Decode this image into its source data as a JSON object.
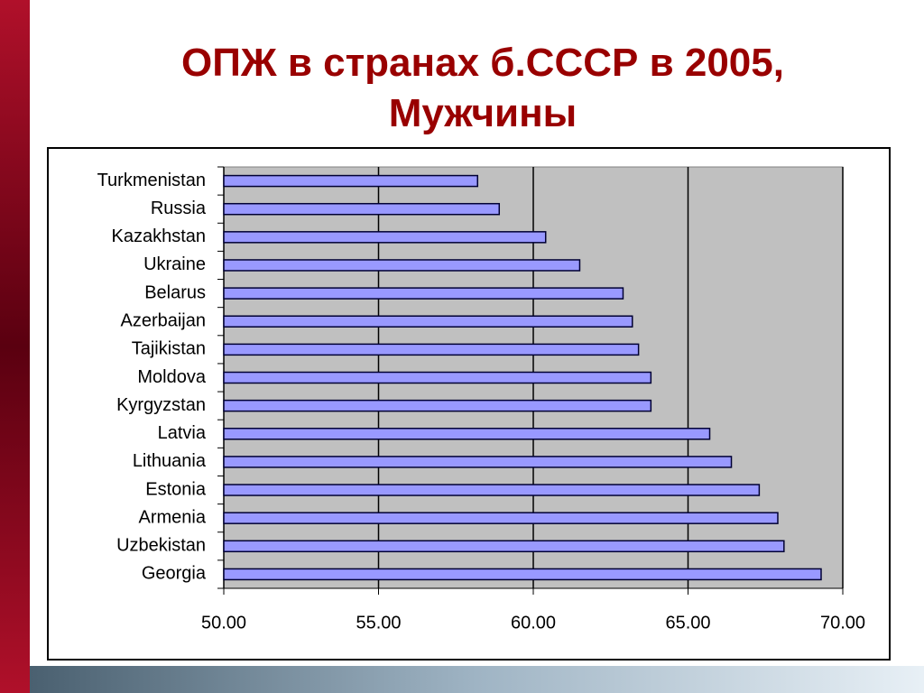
{
  "chart_data": {
    "type": "bar",
    "orientation": "horizontal",
    "title": "ОПЖ в странах б.СССР в 2005, Мужчины",
    "categories": [
      "Turkmenistan",
      "Russia",
      "Kazakhstan",
      "Ukraine",
      "Belarus",
      "Azerbaijan",
      "Tajikistan",
      "Moldova",
      "Kyrgyzstan",
      "Latvia",
      "Lithuania",
      "Estonia",
      "Armenia",
      "Uzbekistan",
      "Georgia"
    ],
    "values": [
      58.2,
      58.9,
      60.4,
      61.5,
      62.9,
      63.2,
      63.4,
      63.8,
      63.8,
      65.7,
      66.4,
      67.3,
      67.9,
      68.1,
      69.3
    ],
    "color": "#9999ff",
    "xlim": [
      50,
      70
    ],
    "xticks": [
      {
        "value": 50,
        "label": "50.00"
      },
      {
        "value": 55,
        "label": "55.00"
      },
      {
        "value": 60,
        "label": "60.00"
      },
      {
        "value": 65,
        "label": "65.00"
      },
      {
        "value": 70,
        "label": "70.00"
      }
    ],
    "grid": true
  }
}
